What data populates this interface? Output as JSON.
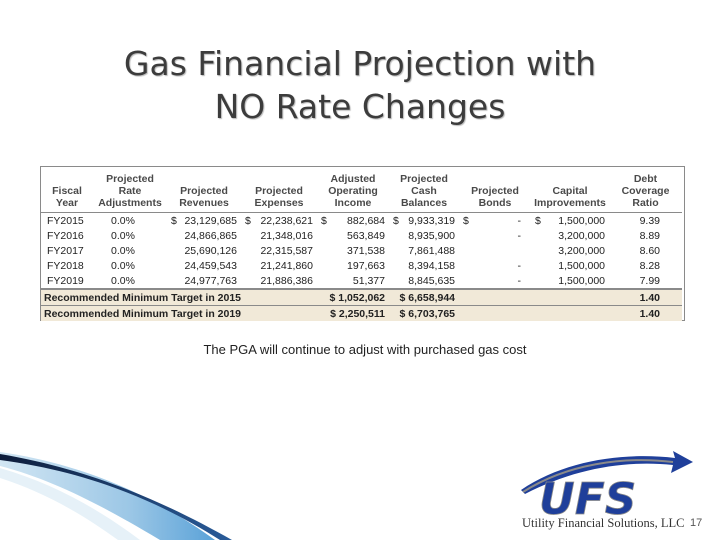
{
  "slide": {
    "title_line1": "Gas Financial Projection with",
    "title_line2": "NO Rate Changes",
    "note": "The PGA will continue to adjust with purchased gas cost",
    "page_number": "17"
  },
  "table": {
    "headers": {
      "fiscal_year": "Fiscal Year",
      "rate_adj": "Projected Rate Adjustments",
      "revenues": "Projected Revenues",
      "expenses": "Projected Expenses",
      "operating_income": "Adjusted Operating Income",
      "cash_balances": "Projected Cash Balances",
      "bonds": "Projected Bonds",
      "capital": "Capital Improvements",
      "dscr": "Debt Coverage Ratio"
    },
    "rows": [
      {
        "year": "FY2015",
        "rate": "0.0%",
        "revenues": "23,129,685",
        "expenses": "22,238,621",
        "income": "882,684",
        "cash": "9,933,319",
        "bonds": "-",
        "capital": "1,500,000",
        "dscr": "9.39",
        "show_currency": true
      },
      {
        "year": "FY2016",
        "rate": "0.0%",
        "revenues": "24,866,865",
        "expenses": "21,348,016",
        "income": "563,849",
        "cash": "8,935,900",
        "bonds": "-",
        "capital": "3,200,000",
        "dscr": "8.89",
        "show_currency": false
      },
      {
        "year": "FY2017",
        "rate": "0.0%",
        "revenues": "25,690,126",
        "expenses": "22,315,587",
        "income": "371,538",
        "cash": "7,861,488",
        "bonds": "",
        "capital": "3,200,000",
        "dscr": "8.60",
        "show_currency": false
      },
      {
        "year": "FY2018",
        "rate": "0.0%",
        "revenues": "24,459,543",
        "expenses": "21,241,860",
        "income": "197,663",
        "cash": "8,394,158",
        "bonds": "-",
        "capital": "1,500,000",
        "dscr": "8.28",
        "show_currency": false
      },
      {
        "year": "FY2019",
        "rate": "0.0%",
        "revenues": "24,977,763",
        "expenses": "21,886,386",
        "income": "51,377",
        "cash": "8,845,635",
        "bonds": "-",
        "capital": "1,500,000",
        "dscr": "7.99",
        "show_currency": false
      }
    ],
    "currency_symbol": "$",
    "targets": [
      {
        "label": "Recommended Minimum Target in 2015",
        "income": "$ 1,052,062",
        "cash": "$ 6,658,944",
        "dscr": "1.40"
      },
      {
        "label": "Recommended Minimum Target in 2019",
        "income": "$ 2,250,511",
        "cash": "$ 6,703,765",
        "dscr": "1.40"
      }
    ]
  },
  "logo": {
    "wordmark": "UFS",
    "company": "Utility Financial Solutions, LLC",
    "colors": {
      "blue": "#1f3f9a",
      "gray": "#8a8a8a",
      "swoosh": "#3b8fd1"
    }
  }
}
